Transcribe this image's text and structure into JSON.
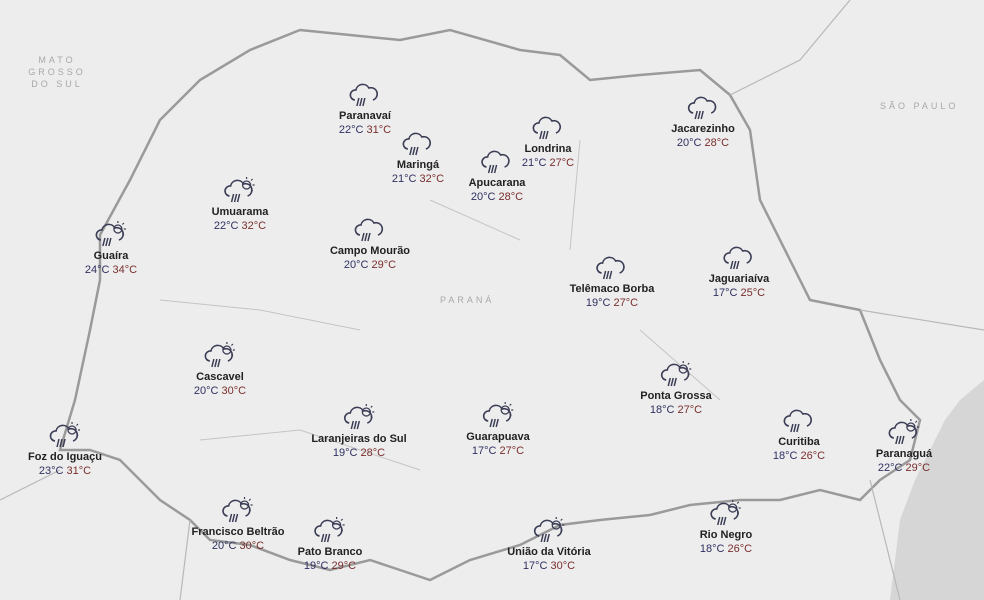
{
  "regions": {
    "ms": "MATO GROSSO DO SUL",
    "sp": "SÃO PAULO",
    "pr": "PARANÁ"
  },
  "colors": {
    "min": "#2e3060",
    "max": "#7a2e2e",
    "background": "#ededed",
    "ocean": "#d6d6d6"
  },
  "cities": [
    {
      "name": "Paranavaí",
      "min": "22°C",
      "max": "31°C",
      "icon": "rain-icon"
    },
    {
      "name": "Maringá",
      "min": "21°C",
      "max": "32°C",
      "icon": "rain-icon"
    },
    {
      "name": "Apucarana",
      "min": "20°C",
      "max": "28°C",
      "icon": "rain-icon"
    },
    {
      "name": "Londrina",
      "min": "21°C",
      "max": "27°C",
      "icon": "rain-icon"
    },
    {
      "name": "Jacarezinho",
      "min": "20°C",
      "max": "28°C",
      "icon": "rain-icon"
    },
    {
      "name": "Umuarama",
      "min": "22°C",
      "max": "32°C",
      "icon": "sun-cloud-rain-icon"
    },
    {
      "name": "Guaíra",
      "min": "24°C",
      "max": "34°C",
      "icon": "sun-cloud-rain-icon"
    },
    {
      "name": "Campo Mourão",
      "min": "20°C",
      "max": "29°C",
      "icon": "rain-icon"
    },
    {
      "name": "Telêmaco Borba",
      "min": "19°C",
      "max": "27°C",
      "icon": "rain-icon"
    },
    {
      "name": "Jaguariaíva",
      "min": "17°C",
      "max": "25°C",
      "icon": "rain-icon"
    },
    {
      "name": "Cascavel",
      "min": "20°C",
      "max": "30°C",
      "icon": "sun-cloud-rain-icon"
    },
    {
      "name": "Foz do Iguaçu",
      "min": "23°C",
      "max": "31°C",
      "icon": "sun-cloud-rain-icon"
    },
    {
      "name": "Laranjeiras do Sul",
      "min": "19°C",
      "max": "28°C",
      "icon": "sun-cloud-rain-icon"
    },
    {
      "name": "Guarapuava",
      "min": "17°C",
      "max": "27°C",
      "icon": "sun-cloud-rain-icon"
    },
    {
      "name": "Ponta Grossa",
      "min": "18°C",
      "max": "27°C",
      "icon": "sun-cloud-rain-icon"
    },
    {
      "name": "Curitiba",
      "min": "18°C",
      "max": "26°C",
      "icon": "rain-icon"
    },
    {
      "name": "Paranaguá",
      "min": "22°C",
      "max": "29°C",
      "icon": "sun-cloud-rain-icon"
    },
    {
      "name": "Francisco Beltrão",
      "min": "20°C",
      "max": "30°C",
      "icon": "sun-cloud-rain-icon"
    },
    {
      "name": "Pato Branco",
      "min": "19°C",
      "max": "29°C",
      "icon": "sun-cloud-rain-icon"
    },
    {
      "name": "União da Vitória",
      "min": "17°C",
      "max": "30°C",
      "icon": "sun-cloud-rain-icon"
    },
    {
      "name": "Rio Negro",
      "min": "18°C",
      "max": "26°C",
      "icon": "sun-cloud-rain-icon"
    }
  ]
}
